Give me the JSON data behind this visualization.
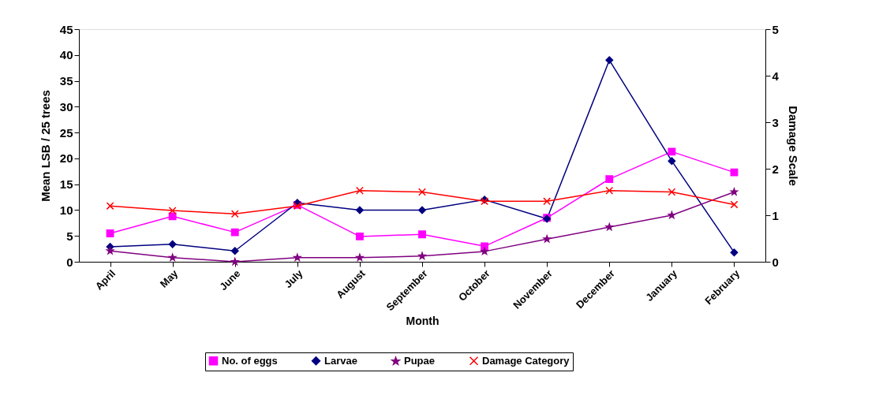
{
  "chart_data": {
    "type": "line",
    "xlabel": "Month",
    "ylabel": "Mean LSB / 25 trees",
    "y2label": "Damage Scale",
    "categories": [
      "April",
      "May",
      "June",
      "July",
      "August",
      "September",
      "October",
      "November",
      "December",
      "January",
      "February"
    ],
    "series": [
      {
        "name": "No. of eggs",
        "color": "#ff00ff",
        "marker": "square",
        "values": [
          5.5,
          8.8,
          5.7,
          11,
          4.9,
          5.3,
          3,
          8.5,
          16,
          21.3,
          17.3
        ]
      },
      {
        "name": "Larvae",
        "color": "#000080",
        "marker": "diamond",
        "values": [
          2.9,
          3.4,
          2.1,
          11.4,
          10,
          10,
          12,
          8.3,
          39,
          19.5,
          1.8
        ]
      },
      {
        "name": "Pupae",
        "color": "#800080",
        "marker": "star",
        "values": [
          2.1,
          0.8,
          0,
          0.8,
          0.8,
          1.1,
          2,
          4.4,
          6.7,
          9,
          13.5
        ]
      },
      {
        "name": "Damage Category",
        "color": "#ff0000",
        "marker": "cross",
        "axis": "y2",
        "values": [
          1.2,
          1.1,
          1.03,
          1.2,
          1.53,
          1.5,
          1.3,
          1.3,
          1.53,
          1.5,
          1.23
        ]
      }
    ],
    "ylim": [
      0,
      45
    ],
    "yticks": [
      0,
      5,
      10,
      15,
      20,
      25,
      30,
      35,
      40,
      45
    ],
    "y2lim": [
      0,
      5
    ],
    "y2ticks": [
      0,
      1,
      2,
      3,
      4,
      5
    ],
    "grid": false,
    "legend": "bottom"
  }
}
